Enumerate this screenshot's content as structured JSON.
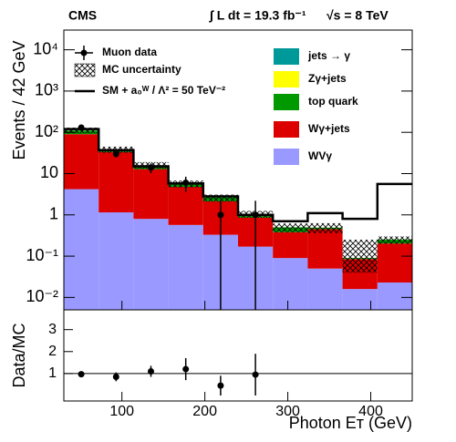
{
  "chart_data": {
    "type": "stacked_histogram",
    "cms_label": "CMS",
    "luminosity": "∫ L dt = 19.3 fb⁻¹",
    "energy": "√s = 8 TeV",
    "ylabel": "Events / 42 GeV",
    "xlabel": "Photon Eᴛ (GeV)",
    "log_y": true,
    "bins": [
      30,
      72,
      114,
      156,
      198,
      240,
      282,
      324,
      366,
      408,
      450
    ],
    "xlim": [
      30,
      450
    ],
    "xticks": [
      100,
      200,
      300,
      400
    ],
    "ylim": [
      0.005,
      30000
    ],
    "yticks": [
      {
        "value": 0.01,
        "label": "10⁻²"
      },
      {
        "value": 0.1,
        "label": "10⁻¹"
      },
      1,
      10,
      {
        "value": 100,
        "label": "10²"
      },
      {
        "value": 1000,
        "label": "10³"
      },
      {
        "value": 10000,
        "label": "10⁴"
      }
    ],
    "series": [
      {
        "name": "WVγ",
        "color": "#9999ff",
        "values": [
          4.2,
          1.15,
          0.8,
          0.57,
          0.33,
          0.17,
          0.09,
          0.05,
          0.016,
          0.023
        ]
      },
      {
        "name": "Wγ+jets",
        "color": "#dd0000",
        "values": [
          86,
          32,
          12,
          4.2,
          1.8,
          0.69,
          0.29,
          0.4,
          0.069,
          0.18
        ]
      },
      {
        "name": "top quark",
        "color": "#009900",
        "values": [
          20,
          5,
          3,
          0.8,
          0.5,
          0.19,
          0.12,
          0.04,
          0.005,
          0.05
        ]
      },
      {
        "name": "Zγ+jets",
        "color": "#ffff00",
        "values": [
          0,
          0,
          0,
          0,
          0,
          0,
          0,
          0,
          0,
          0
        ]
      },
      {
        "name": "jets → γ",
        "color": "#009999",
        "values": [
          0,
          0,
          0,
          0,
          0,
          0,
          0,
          0,
          0,
          0
        ]
      }
    ],
    "mc_uncertainty": {
      "name": "MC uncertainty",
      "low": [
        95,
        32,
        13,
        4.6,
        2.1,
        0.85,
        0.38,
        0.36,
        0.04,
        0.2
      ],
      "high": [
        130,
        45,
        19,
        6.8,
        3.1,
        1.25,
        0.62,
        0.63,
        0.25,
        0.3
      ]
    },
    "signal": {
      "name": "SM + a₀ᵂ / Λ² = 50 TeV⁻²",
      "values": [
        120,
        37,
        15,
        5.8,
        2.8,
        1.0,
        0.7,
        1.1,
        0.8,
        5.6
      ]
    },
    "data": {
      "name": "Muon data",
      "values": [
        130,
        30,
        14,
        6,
        1,
        1,
        null,
        null,
        null,
        null
      ],
      "errors": [
        11,
        5.5,
        3.7,
        2.4,
        1.2,
        1.2,
        null,
        null,
        null,
        null
      ]
    },
    "ratio": {
      "ylabel": "Data/MC",
      "ylim": [
        -0.25,
        3.9
      ],
      "yticks": [
        1,
        2,
        3
      ],
      "reference": 1,
      "values": [
        0.97,
        0.85,
        1.1,
        1.2,
        0.45,
        0.95,
        null,
        null,
        null,
        null
      ],
      "errors": [
        0.1,
        0.2,
        0.25,
        0.5,
        0.45,
        0.95,
        null,
        null,
        null,
        null
      ]
    }
  }
}
